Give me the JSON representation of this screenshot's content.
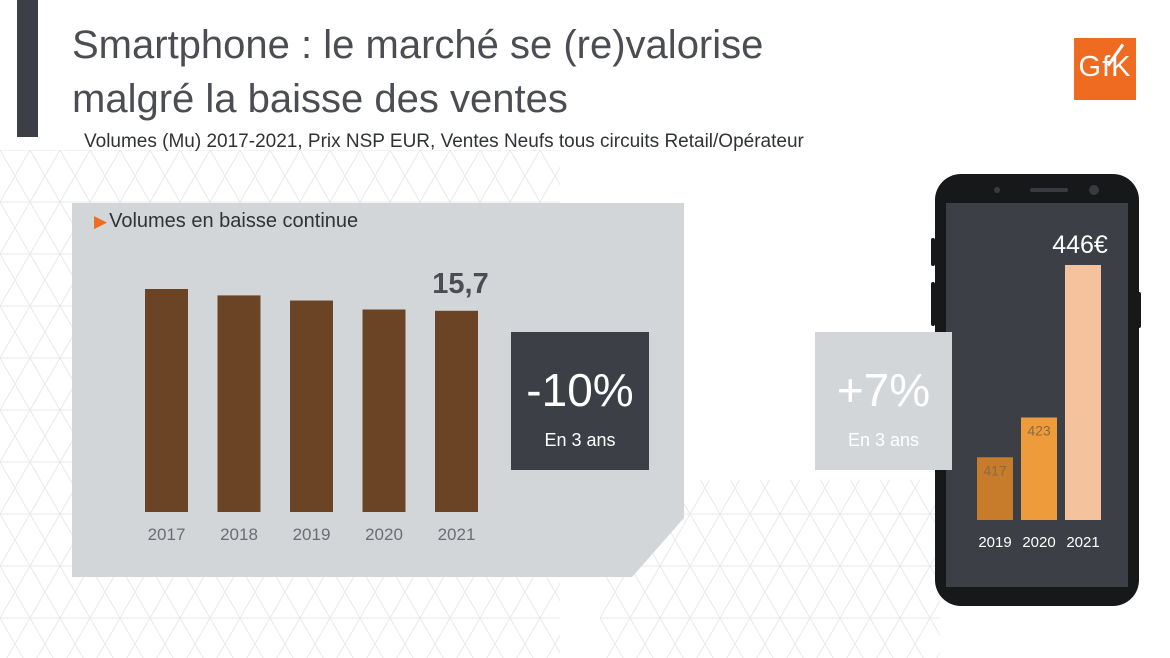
{
  "header": {
    "title_line1": "Smartphone : le marché se (re)valorise",
    "title_line2": "malgré la baisse des ventes",
    "subtitle": "Volumes (Mu) 2017-2021, Prix NSP EUR, Ventes Neufs tous circuits Retail/Opérateur",
    "logo_text": "GfK"
  },
  "colors": {
    "accent": "#ee6b21",
    "volume_bar": "#6b4426",
    "price_bars": [
      "#c67c2b",
      "#ee9c3b",
      "#f4c29c"
    ],
    "dark": "#3c4046",
    "panel": "#d3d6d9"
  },
  "left_panel": {
    "title": "Volumes en baisse continue",
    "badge_value": "-10%",
    "badge_sub": "En 3 ans"
  },
  "right_panel": {
    "badge_value": "+7%",
    "badge_sub": "En 3 ans"
  },
  "chart_data": [
    {
      "type": "bar",
      "categories": [
        "2017",
        "2018",
        "2019",
        "2020",
        "2021"
      ],
      "values": [
        17.4,
        16.9,
        16.5,
        15.8,
        15.7
      ],
      "data_labels": [
        "",
        "",
        "",
        "",
        "15,7"
      ],
      "ylim": [
        0,
        17.4
      ]
    },
    {
      "type": "bar",
      "categories": [
        "2019",
        "2020",
        "2021"
      ],
      "values": [
        417,
        423,
        446
      ],
      "data_labels": [
        "417",
        "423",
        "446€"
      ],
      "ylim": [
        0,
        446
      ]
    }
  ]
}
